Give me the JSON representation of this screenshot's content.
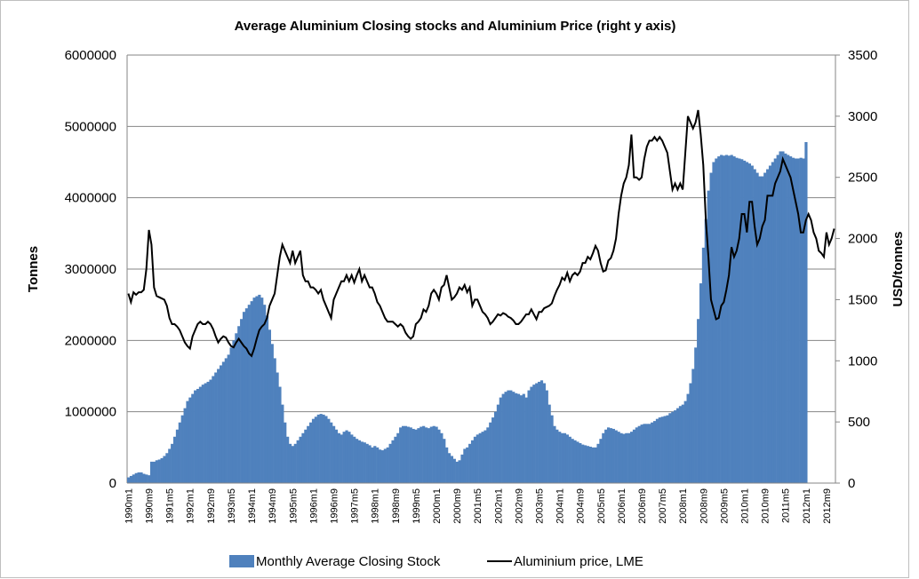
{
  "chart_data": {
    "type": "bar",
    "title": "Average Aluminium Closing stocks and Aluminium Price (right y axis)",
    "ylabel": "Tonnes",
    "y2label": "USD/tonnes",
    "categories": [
      "1990m1",
      null,
      null,
      null,
      null,
      null,
      null,
      null,
      "1990m9",
      null,
      null,
      null,
      null,
      null,
      null,
      null,
      "1991m5",
      null,
      null,
      null,
      null,
      null,
      null,
      null,
      "1992m1",
      null,
      null,
      null,
      null,
      null,
      null,
      null,
      "1992m9",
      null,
      null,
      null,
      null,
      null,
      null,
      null,
      "1993m5",
      null,
      null,
      null,
      null,
      null,
      null,
      null,
      "1994m1",
      null,
      null,
      null,
      null,
      null,
      null,
      null,
      "1994m9",
      null,
      null,
      null,
      null,
      null,
      null,
      null,
      "1995m5",
      null,
      null,
      null,
      null,
      null,
      null,
      null,
      "1996m1",
      null,
      null,
      null,
      null,
      null,
      null,
      null,
      "1996m9",
      null,
      null,
      null,
      null,
      null,
      null,
      null,
      "1997m5",
      null,
      null,
      null,
      null,
      null,
      null,
      null,
      "1998m1",
      null,
      null,
      null,
      null,
      null,
      null,
      null,
      "1998m9",
      null,
      null,
      null,
      null,
      null,
      null,
      null,
      "1999m5",
      null,
      null,
      null,
      null,
      null,
      null,
      null,
      "2000m1",
      null,
      null,
      null,
      null,
      null,
      null,
      null,
      "2000m9",
      null,
      null,
      null,
      null,
      null,
      null,
      null,
      "2001m5",
      null,
      null,
      null,
      null,
      null,
      null,
      null,
      "2002m1",
      null,
      null,
      null,
      null,
      null,
      null,
      null,
      "2002m9",
      null,
      null,
      null,
      null,
      null,
      null,
      null,
      "2003m5",
      null,
      null,
      null,
      null,
      null,
      null,
      null,
      "2004m1",
      null,
      null,
      null,
      null,
      null,
      null,
      null,
      "2004m9",
      null,
      null,
      null,
      null,
      null,
      null,
      null,
      "2005m5",
      null,
      null,
      null,
      null,
      null,
      null,
      null,
      "2006m1",
      null,
      null,
      null,
      null,
      null,
      null,
      null,
      "2006m9",
      null,
      null,
      null,
      null,
      null,
      null,
      null,
      "2007m5",
      null,
      null,
      null,
      null,
      null,
      null,
      null,
      "2008m1",
      null,
      null,
      null,
      null,
      null,
      null,
      null,
      "2008m9",
      null,
      null,
      null,
      null,
      null,
      null,
      null,
      "2009m5",
      null,
      null,
      null,
      null,
      null,
      null,
      null,
      "2010m1",
      null,
      null,
      null,
      null,
      null,
      null,
      null,
      "2010m9",
      null,
      null,
      null,
      null,
      null,
      null,
      null,
      "2011m5",
      null,
      null,
      null,
      null,
      null,
      null,
      null,
      "2012m1",
      null,
      null,
      null,
      null,
      null,
      null,
      null,
      "2012m9",
      null,
      null,
      null
    ],
    "series": [
      {
        "name": "Monthly Average Closing Stock",
        "type": "bar",
        "color": "#4f81bd",
        "values": [
          80000,
          100000,
          120000,
          140000,
          150000,
          150000,
          130000,
          120000,
          110000,
          300000,
          300000,
          320000,
          330000,
          350000,
          380000,
          420000,
          480000,
          550000,
          650000,
          750000,
          850000,
          950000,
          1050000,
          1150000,
          1200000,
          1250000,
          1300000,
          1320000,
          1350000,
          1380000,
          1400000,
          1420000,
          1450000,
          1500000,
          1550000,
          1600000,
          1650000,
          1700000,
          1750000,
          1800000,
          1900000,
          2000000,
          2100000,
          2200000,
          2300000,
          2400000,
          2450000,
          2500000,
          2550000,
          2600000,
          2620000,
          2640000,
          2600000,
          2500000,
          2350000,
          2150000,
          1950000,
          1750000,
          1550000,
          1350000,
          1100000,
          850000,
          650000,
          550000,
          520000,
          550000,
          600000,
          650000,
          700000,
          750000,
          800000,
          850000,
          900000,
          930000,
          960000,
          970000,
          960000,
          940000,
          900000,
          850000,
          800000,
          750000,
          700000,
          680000,
          720000,
          740000,
          720000,
          680000,
          650000,
          620000,
          600000,
          580000,
          570000,
          550000,
          530000,
          500000,
          520000,
          500000,
          470000,
          460000,
          480000,
          500000,
          550000,
          600000,
          650000,
          700000,
          780000,
          800000,
          800000,
          790000,
          780000,
          760000,
          750000,
          770000,
          790000,
          800000,
          780000,
          770000,
          790000,
          800000,
          790000,
          750000,
          700000,
          620000,
          500000,
          420000,
          380000,
          340000,
          300000,
          320000,
          400000,
          480000,
          500000,
          550000,
          600000,
          650000,
          680000,
          700000,
          720000,
          740000,
          780000,
          850000,
          920000,
          1000000,
          1100000,
          1200000,
          1250000,
          1280000,
          1300000,
          1300000,
          1280000,
          1260000,
          1250000,
          1230000,
          1250000,
          1200000,
          1300000,
          1350000,
          1380000,
          1400000,
          1420000,
          1440000,
          1400000,
          1300000,
          1100000,
          950000,
          800000,
          750000,
          720000,
          700000,
          700000,
          680000,
          650000,
          620000,
          600000,
          580000,
          560000,
          540000,
          530000,
          520000,
          510000,
          500000,
          500000,
          550000,
          620000,
          700000,
          750000,
          780000,
          770000,
          760000,
          740000,
          720000,
          700000,
          690000,
          700000,
          700000,
          720000,
          750000,
          780000,
          800000,
          820000,
          830000,
          830000,
          830000,
          850000,
          870000,
          900000,
          920000,
          930000,
          940000,
          950000,
          980000,
          1000000,
          1020000,
          1050000,
          1080000,
          1100000,
          1150000,
          1250000,
          1400000,
          1600000,
          1900000,
          2300000,
          2800000,
          3300000,
          3700000,
          4100000,
          4350000,
          4500000,
          4550000,
          4580000,
          4600000,
          4590000,
          4600000,
          4590000,
          4600000,
          4580000,
          4560000,
          4550000,
          4540000,
          4520000,
          4500000,
          4480000,
          4450000,
          4400000,
          4350000,
          4300000,
          4300000,
          4350000,
          4400000,
          4450000,
          4500000,
          4550000,
          4600000,
          4650000,
          4650000,
          4620000,
          4600000,
          4580000,
          4560000,
          4550000,
          4550000,
          4560000,
          4550000,
          4780000,
          null,
          null,
          null,
          null,
          null,
          null,
          null,
          null,
          null,
          null,
          null
        ]
      },
      {
        "name": "Aluminium price, LME",
        "type": "line",
        "axis": "y2",
        "color": "#000000",
        "values": [
          1550,
          1480,
          1560,
          1540,
          1560,
          1560,
          1580,
          1750,
          2070,
          1950,
          1600,
          1530,
          1520,
          1510,
          1500,
          1450,
          1350,
          1300,
          1300,
          1280,
          1250,
          1200,
          1150,
          1120,
          1100,
          1200,
          1250,
          1300,
          1320,
          1300,
          1300,
          1320,
          1300,
          1260,
          1200,
          1150,
          1180,
          1200,
          1190,
          1150,
          1120,
          1110,
          1150,
          1180,
          1150,
          1120,
          1100,
          1060,
          1040,
          1100,
          1180,
          1250,
          1280,
          1300,
          1350,
          1450,
          1500,
          1550,
          1700,
          1850,
          1950,
          1900,
          1850,
          1800,
          1900,
          1800,
          1850,
          1900,
          1700,
          1650,
          1650,
          1600,
          1600,
          1580,
          1550,
          1580,
          1500,
          1450,
          1400,
          1350,
          1500,
          1550,
          1600,
          1650,
          1650,
          1700,
          1650,
          1700,
          1640,
          1700,
          1750,
          1650,
          1700,
          1650,
          1600,
          1600,
          1550,
          1480,
          1450,
          1400,
          1350,
          1320,
          1320,
          1320,
          1300,
          1280,
          1300,
          1280,
          1230,
          1200,
          1180,
          1200,
          1300,
          1320,
          1350,
          1420,
          1400,
          1450,
          1550,
          1580,
          1550,
          1500,
          1600,
          1620,
          1700,
          1600,
          1500,
          1520,
          1550,
          1600,
          1580,
          1620,
          1560,
          1600,
          1450,
          1500,
          1500,
          1450,
          1400,
          1380,
          1350,
          1300,
          1320,
          1350,
          1380,
          1370,
          1390,
          1380,
          1360,
          1350,
          1330,
          1300,
          1300,
          1320,
          1350,
          1380,
          1380,
          1420,
          1380,
          1340,
          1400,
          1400,
          1430,
          1440,
          1450,
          1470,
          1530,
          1580,
          1620,
          1680,
          1660,
          1720,
          1650,
          1700,
          1720,
          1700,
          1730,
          1800,
          1800,
          1850,
          1830,
          1880,
          1940,
          1900,
          1800,
          1730,
          1740,
          1820,
          1840,
          1900,
          2000,
          2200,
          2350,
          2450,
          2500,
          2600,
          2850,
          2500,
          2500,
          2480,
          2500,
          2650,
          2750,
          2800,
          2800,
          2830,
          2800,
          2830,
          2800,
          2750,
          2700,
          2550,
          2400,
          2450,
          2400,
          2450,
          2400,
          2700,
          3000,
          2950,
          2900,
          2950,
          3050,
          2850,
          2600,
          2150,
          1850,
          1500,
          1420,
          1340,
          1350,
          1450,
          1480,
          1580,
          1700,
          1930,
          1850,
          1900,
          2000,
          2200,
          2200,
          2050,
          2300,
          2300,
          2100,
          1950,
          2000,
          2100,
          2150,
          2350,
          2350,
          2350,
          2450,
          2500,
          2550,
          2650,
          2600,
          2550,
          2500,
          2400,
          2300,
          2200,
          2050,
          2050,
          2150,
          2200,
          2150,
          2050,
          2000,
          1900,
          1880,
          1850,
          2050,
          1950,
          2000,
          2080
        ]
      }
    ],
    "ylim": [
      0,
      6000000
    ],
    "yticks": [
      0,
      1000000,
      2000000,
      3000000,
      4000000,
      5000000,
      6000000
    ],
    "y2lim": [
      0,
      3500
    ],
    "y2ticks": [
      0,
      500,
      1000,
      1500,
      2000,
      2500,
      3000,
      3500
    ],
    "grid": true,
    "legend": "bottom"
  }
}
